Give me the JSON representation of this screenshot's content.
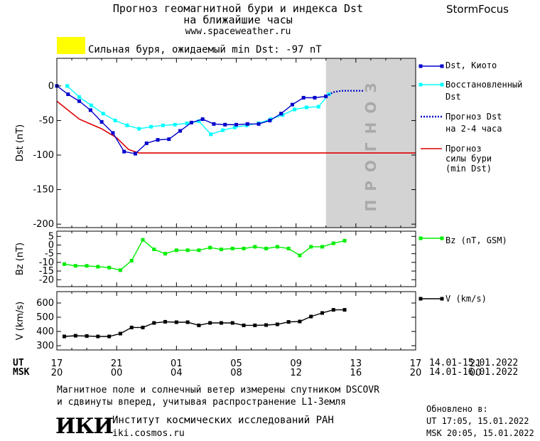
{
  "header": {
    "title_line1": "Прогноз геомагнитной бури и индекса Dst",
    "title_line2": "на ближайшие часы",
    "url": "www.spaceweather.ru",
    "brand": "StormFocus"
  },
  "alert": {
    "color": "#ffff00",
    "text": "Сильная буря, ожидаемый min Dst: -97 nT"
  },
  "forecast_band_label": "ПРОГНОЗ",
  "legend": {
    "dst_kyoto": "Dst, Киото",
    "restored_line1": "Восстановленный",
    "restored_line2": "Dst",
    "forecast_line1": "Прогноз Dst",
    "forecast_line2": "на 2-4 часа",
    "strength_line1": "Прогноз",
    "strength_line2": "силы бури",
    "strength_line3": "(min Dst)",
    "bz": "Bz (nT, GSM)",
    "v": "V (km/s)"
  },
  "time_axis": {
    "ut_label": "UT",
    "msk_label": "MSK",
    "ut_ticks": [
      "17",
      "21",
      "01",
      "05",
      "09",
      "13",
      "17",
      "21"
    ],
    "msk_ticks": [
      "20",
      "00",
      "04",
      "08",
      "12",
      "16",
      "20",
      "00"
    ],
    "ut_range": "14.01-15.01.2022",
    "msk_range": "14.01-16.01.2022"
  },
  "footer": {
    "note_line1": "Магнитное поле и солнечный ветер измерены спутником DSCOVR",
    "note_line2": "и сдвинуты вперед, учитывая распространение L1-Земля",
    "logo": "ИКИ",
    "institute": "Институт космических исследований РАН",
    "site": "iki.cosmos.ru",
    "updated_label": "Обновлено в:",
    "updated_ut": "UT  17:05, 15.01.2022",
    "updated_msk": "MSK 20:05, 15.01.2022"
  },
  "colors": {
    "dst_kyoto": "#0000cc",
    "restored": "#00ffff",
    "forecast_dst": "#0000cc",
    "storm_strength": "#dd0000",
    "bz": "#00ee00",
    "v": "#000000",
    "forecast_band": "#d3d3d3",
    "forecast_text": "#a9a9a9"
  },
  "chart_data": [
    {
      "type": "line",
      "ylabel": "Dst (nT)",
      "ylim": [
        -205,
        40
      ],
      "xlim": [
        17,
        41
      ],
      "yticks": [
        0,
        -50,
        -100,
        -150,
        -200
      ],
      "forecast_band": [
        35,
        41
      ],
      "series": [
        {
          "name": "Dst, Киото",
          "x": [
            17,
            17.75,
            18.5,
            19.25,
            20,
            20.75,
            21.5,
            22.25,
            23,
            23.75,
            24.5,
            25.25,
            26,
            26.75,
            27.5,
            28.25,
            29,
            29.75,
            30.5,
            31.25,
            32,
            32.75,
            33.5,
            34.25,
            35
          ],
          "values": [
            0,
            -12,
            -22,
            -35,
            -52,
            -68,
            -95,
            -98,
            -83,
            -78,
            -77,
            -65,
            -53,
            -48,
            -55,
            -56,
            -56,
            -55,
            -55,
            -50,
            -40,
            -27,
            -17,
            -17,
            -15
          ]
        },
        {
          "name": "Восстановленный Dst",
          "x": [
            17.7,
            18.5,
            19.3,
            20.1,
            20.9,
            21.7,
            22.5,
            23.3,
            24.1,
            24.9,
            25.7,
            26.5,
            27.3,
            28.1,
            28.9,
            29.7,
            30.5,
            31.3,
            32.1,
            32.9,
            33.7,
            34.5,
            35.2
          ],
          "values": [
            0,
            -16,
            -28,
            -40,
            -50,
            -57,
            -62,
            -59,
            -57,
            -56,
            -54,
            -51,
            -70,
            -64,
            -60,
            -57,
            -54,
            -48,
            -42,
            -34,
            -31,
            -30,
            -12
          ]
        },
        {
          "name": "Прогноз Dst на 2-4 часа",
          "x": [
            35,
            35.5,
            36,
            36.5,
            37,
            37.5
          ],
          "values": [
            -15,
            -9,
            -7,
            -7,
            -7,
            -7
          ]
        },
        {
          "name": "Прогноз силы бури (min Dst)",
          "x": [
            17,
            18.5,
            20,
            21,
            21.8,
            22.5,
            23.5,
            41
          ],
          "values": [
            -22,
            -48,
            -62,
            -75,
            -92,
            -97,
            -97,
            -97
          ]
        }
      ]
    },
    {
      "type": "line",
      "ylabel": "Bz (nT)",
      "ylim": [
        -24,
        8
      ],
      "xlim": [
        17,
        41
      ],
      "yticks": [
        5,
        0,
        -5,
        -10,
        -15,
        -20
      ],
      "series": [
        {
          "name": "Bz (nT, GSM)",
          "x": [
            17.5,
            18.25,
            19,
            19.75,
            20.5,
            21.25,
            22,
            22.75,
            23.5,
            24.25,
            25,
            25.75,
            26.5,
            27.25,
            28,
            28.75,
            29.5,
            30.25,
            31,
            31.75,
            32.5,
            33.25,
            34,
            34.75,
            35.5,
            36.25
          ],
          "values": [
            -11,
            -12,
            -12,
            -12.5,
            -13,
            -14.5,
            -9,
            3,
            -2.5,
            -5,
            -3,
            -3,
            -3,
            -1.5,
            -2.5,
            -2,
            -2,
            -1,
            -2,
            -1,
            -2,
            -6,
            -1,
            -1,
            1,
            2.5
          ]
        }
      ]
    },
    {
      "type": "line",
      "ylabel": "V (km/s)",
      "ylim": [
        270,
        680
      ],
      "xlim": [
        17,
        41
      ],
      "yticks": [
        600,
        500,
        400,
        300
      ],
      "series": [
        {
          "name": "V (km/s)",
          "x": [
            17.5,
            18.25,
            19,
            19.75,
            20.5,
            21.25,
            22,
            22.75,
            23.5,
            24.25,
            25,
            25.75,
            26.5,
            27.25,
            28,
            28.75,
            29.5,
            30.25,
            31,
            31.75,
            32.5,
            33.25,
            34,
            34.75,
            35.5,
            36.25
          ],
          "values": [
            365,
            370,
            368,
            365,
            365,
            385,
            428,
            428,
            460,
            468,
            465,
            465,
            443,
            460,
            460,
            460,
            443,
            443,
            445,
            450,
            467,
            470,
            505,
            530,
            552,
            552
          ]
        }
      ]
    }
  ]
}
